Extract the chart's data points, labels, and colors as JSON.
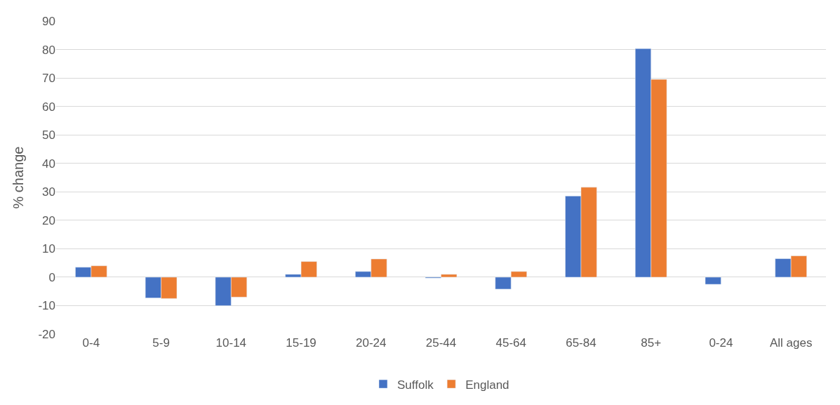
{
  "chart_data": {
    "type": "bar",
    "ylabel": "% change",
    "categories": [
      "0-4",
      "5-9",
      "10-14",
      "15-19",
      "20-24",
      "25-44",
      "45-64",
      "65-84",
      "85+",
      "0-24",
      "All ages"
    ],
    "series": [
      {
        "name": "Suffolk",
        "color": "#4472c4",
        "values": [
          3.5,
          -7.3,
          -10,
          1,
          2,
          -0.3,
          -4.2,
          28.5,
          80.3,
          -2.5,
          6.5
        ]
      },
      {
        "name": "England",
        "color": "#ed7d31",
        "values": [
          4,
          -7.5,
          -7,
          5.5,
          6.4,
          1,
          2,
          31.6,
          69.5,
          null,
          7.5
        ]
      }
    ],
    "ylim": [
      -20,
      90
    ],
    "yticks": [
      -20,
      -10,
      0,
      10,
      20,
      30,
      40,
      50,
      60,
      70,
      80,
      90
    ],
    "grid": "y",
    "legend": "bottom"
  }
}
